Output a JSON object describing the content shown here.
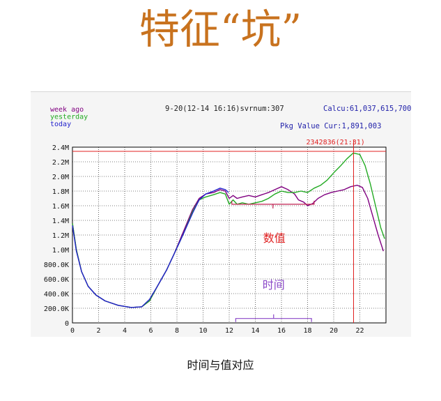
{
  "page": {
    "title": "特征“坑”",
    "caption": "时间与值对应"
  },
  "chart_data": {
    "type": "line",
    "header": "9-20(12-14 16:16)svrnum:307",
    "calcu": "Calcu:61,037,615,700",
    "pkg": "Pkg Value Cur:1,891,003",
    "marker_label": "2342836(21:31)",
    "marker_time": 21.52,
    "marker_value": 2342836,
    "annotations": {
      "value_label": "数值",
      "time_label": "时间",
      "value_bracket": {
        "from": 12.2,
        "to": 18.5,
        "at": 1.62
      },
      "time_bracket": {
        "from": 12.5,
        "to": 18.3,
        "at": 0.06
      }
    },
    "legend": [
      {
        "name": "week ago",
        "color": "#800080"
      },
      {
        "name": "yesterday",
        "color": "#22aa22"
      },
      {
        "name": "today",
        "color": "#2222cc"
      }
    ],
    "xlim": [
      0,
      24
    ],
    "ylim": [
      0,
      2.4
    ],
    "x_ticks": [
      0,
      2,
      4,
      6,
      8,
      10,
      12,
      14,
      16,
      18,
      20,
      22
    ],
    "y_ticks": [
      {
        "v": 0,
        "label": "0"
      },
      {
        "v": 0.2,
        "label": "200.0K"
      },
      {
        "v": 0.4,
        "label": "400.0K"
      },
      {
        "v": 0.6,
        "label": "600.0K"
      },
      {
        "v": 0.8,
        "label": "800.0K"
      },
      {
        "v": 1.0,
        "label": "1.0M"
      },
      {
        "v": 1.2,
        "label": "1.2M"
      },
      {
        "v": 1.4,
        "label": "1.4M"
      },
      {
        "v": 1.6,
        "label": "1.6M"
      },
      {
        "v": 1.8,
        "label": "1.8M"
      },
      {
        "v": 2.0,
        "label": "2.0M"
      },
      {
        "v": 2.2,
        "label": "2.2M"
      },
      {
        "v": 2.4,
        "label": "2.4M"
      }
    ],
    "series": [
      {
        "name": "week ago",
        "color": "#800080",
        "points": [
          [
            0,
            1.36
          ],
          [
            0.3,
            1.0
          ],
          [
            0.7,
            0.7
          ],
          [
            1.2,
            0.5
          ],
          [
            1.8,
            0.38
          ],
          [
            2.5,
            0.3
          ],
          [
            3.5,
            0.24
          ],
          [
            4.5,
            0.21
          ],
          [
            5.3,
            0.22
          ],
          [
            5.9,
            0.3
          ],
          [
            6.5,
            0.5
          ],
          [
            7.2,
            0.72
          ],
          [
            7.8,
            0.95
          ],
          [
            8.5,
            1.25
          ],
          [
            9.2,
            1.55
          ],
          [
            9.7,
            1.7
          ],
          [
            10.2,
            1.76
          ],
          [
            10.8,
            1.78
          ],
          [
            11.3,
            1.82
          ],
          [
            11.7,
            1.8
          ],
          [
            12.0,
            1.7
          ],
          [
            12.3,
            1.74
          ],
          [
            12.6,
            1.7
          ],
          [
            13.0,
            1.72
          ],
          [
            13.5,
            1.74
          ],
          [
            14.0,
            1.72
          ],
          [
            14.5,
            1.75
          ],
          [
            15.0,
            1.78
          ],
          [
            15.5,
            1.82
          ],
          [
            16.0,
            1.86
          ],
          [
            16.5,
            1.82
          ],
          [
            17.0,
            1.76
          ],
          [
            17.3,
            1.68
          ],
          [
            17.7,
            1.65
          ],
          [
            18.0,
            1.6
          ],
          [
            18.4,
            1.63
          ],
          [
            18.8,
            1.7
          ],
          [
            19.3,
            1.75
          ],
          [
            19.8,
            1.78
          ],
          [
            20.3,
            1.8
          ],
          [
            20.8,
            1.82
          ],
          [
            21.3,
            1.86
          ],
          [
            21.8,
            1.88
          ],
          [
            22.2,
            1.85
          ],
          [
            22.6,
            1.7
          ],
          [
            23.0,
            1.45
          ],
          [
            23.4,
            1.2
          ],
          [
            23.8,
            0.98
          ]
        ]
      },
      {
        "name": "yesterday",
        "color": "#22aa22",
        "points": [
          [
            0,
            1.36
          ],
          [
            0.3,
            1.0
          ],
          [
            0.7,
            0.7
          ],
          [
            1.2,
            0.5
          ],
          [
            1.8,
            0.38
          ],
          [
            2.5,
            0.3
          ],
          [
            3.5,
            0.24
          ],
          [
            4.5,
            0.21
          ],
          [
            5.3,
            0.22
          ],
          [
            5.9,
            0.3
          ],
          [
            6.5,
            0.5
          ],
          [
            7.2,
            0.72
          ],
          [
            7.8,
            0.95
          ],
          [
            8.5,
            1.22
          ],
          [
            9.2,
            1.52
          ],
          [
            9.7,
            1.68
          ],
          [
            10.2,
            1.72
          ],
          [
            10.8,
            1.75
          ],
          [
            11.3,
            1.78
          ],
          [
            11.7,
            1.76
          ],
          [
            12.0,
            1.62
          ],
          [
            12.3,
            1.68
          ],
          [
            12.6,
            1.62
          ],
          [
            13.0,
            1.64
          ],
          [
            13.5,
            1.62
          ],
          [
            14.0,
            1.64
          ],
          [
            14.5,
            1.66
          ],
          [
            15.0,
            1.7
          ],
          [
            15.5,
            1.76
          ],
          [
            16.0,
            1.8
          ],
          [
            16.5,
            1.78
          ],
          [
            17.0,
            1.78
          ],
          [
            17.5,
            1.8
          ],
          [
            18.0,
            1.78
          ],
          [
            18.5,
            1.84
          ],
          [
            19.0,
            1.88
          ],
          [
            19.5,
            1.95
          ],
          [
            20.0,
            2.05
          ],
          [
            20.5,
            2.14
          ],
          [
            21.0,
            2.24
          ],
          [
            21.5,
            2.32
          ],
          [
            22.0,
            2.3
          ],
          [
            22.4,
            2.15
          ],
          [
            22.8,
            1.9
          ],
          [
            23.2,
            1.6
          ],
          [
            23.6,
            1.3
          ],
          [
            23.9,
            1.15
          ]
        ]
      },
      {
        "name": "today",
        "color": "#2222cc",
        "points": [
          [
            0,
            1.33
          ],
          [
            0.3,
            0.98
          ],
          [
            0.7,
            0.7
          ],
          [
            1.2,
            0.5
          ],
          [
            1.8,
            0.38
          ],
          [
            2.5,
            0.3
          ],
          [
            3.5,
            0.24
          ],
          [
            4.5,
            0.21
          ],
          [
            5.3,
            0.22
          ],
          [
            5.9,
            0.32
          ],
          [
            6.5,
            0.5
          ],
          [
            7.2,
            0.72
          ],
          [
            7.8,
            0.95
          ],
          [
            8.5,
            1.22
          ],
          [
            9.2,
            1.5
          ],
          [
            9.7,
            1.68
          ],
          [
            10.2,
            1.76
          ],
          [
            10.8,
            1.8
          ],
          [
            11.3,
            1.84
          ],
          [
            11.7,
            1.82
          ],
          [
            11.95,
            1.78
          ]
        ]
      }
    ]
  }
}
